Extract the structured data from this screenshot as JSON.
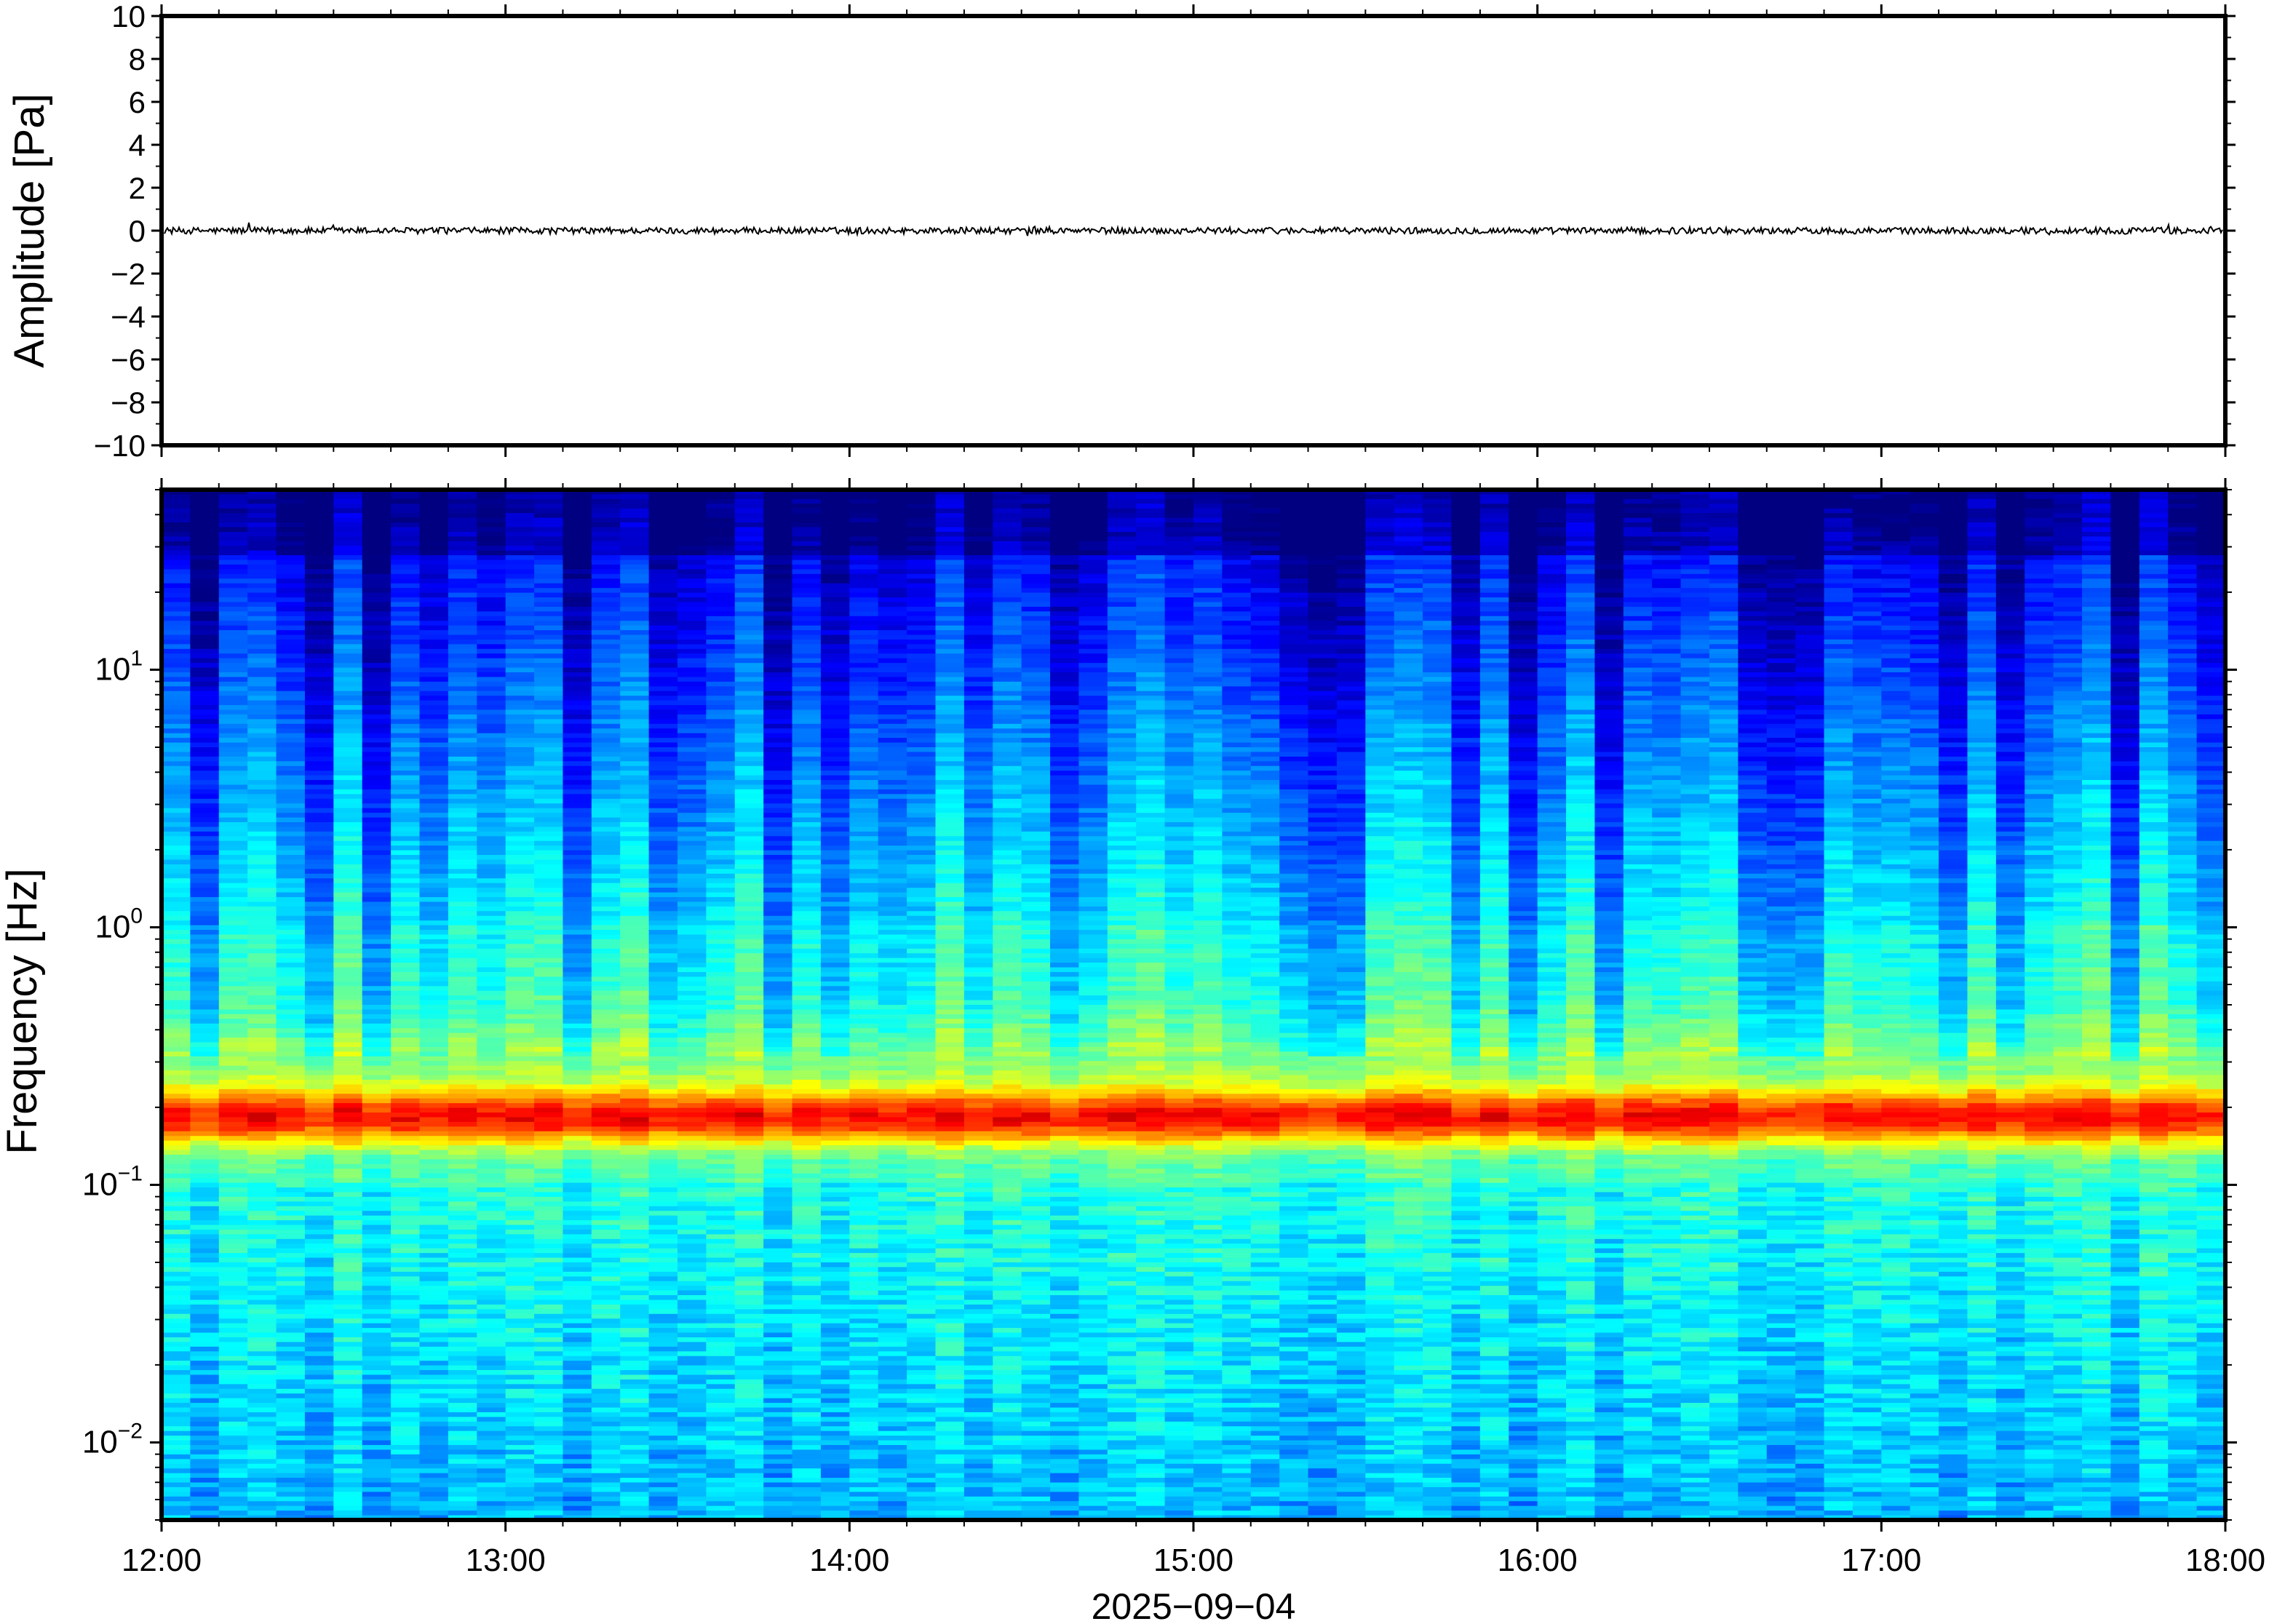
{
  "chart_data": [
    {
      "type": "line",
      "title": "",
      "xlabel": "",
      "ylabel": "Amplitude [Pa]",
      "ylim": [
        -10,
        10
      ],
      "yticks": [
        10,
        8,
        6,
        4,
        2,
        0,
        -2,
        -4,
        -6,
        -8,
        -10
      ],
      "ytick_labels": [
        "10",
        "8",
        "6",
        "4",
        "2",
        "0",
        "−2",
        "−4",
        "−6",
        "−8",
        "−10"
      ],
      "grid": false,
      "series": [
        {
          "color": "#000000",
          "baseline": 0,
          "noise_amplitude": 0.15
        }
      ]
    },
    {
      "type": "heatmap",
      "title": "",
      "xlabel": "2025−09−04",
      "ylabel": "Frequency [Hz]",
      "y_scale": "log",
      "ylim": [
        0.005,
        50
      ],
      "ytick_values": [
        0.01,
        0.1,
        1,
        10
      ],
      "ytick_labels": [
        {
          "base": "10",
          "exp": "−2"
        },
        {
          "base": "10",
          "exp": "−1"
        },
        {
          "base": "10",
          "exp": "0"
        },
        {
          "base": "10",
          "exp": "1"
        }
      ],
      "xlim": [
        "12:00",
        "18:00"
      ],
      "x_tick_labels": [
        "12:00",
        "13:00",
        "14:00",
        "15:00",
        "16:00",
        "17:00",
        "18:00"
      ],
      "colormap": "jet",
      "peak_band_hz": [
        0.15,
        0.22
      ],
      "grid": false
    }
  ],
  "colors": {
    "axis": "#000000",
    "background": "#ffffff",
    "jet_low": "#00007f",
    "jet_high": "#7f0000"
  }
}
